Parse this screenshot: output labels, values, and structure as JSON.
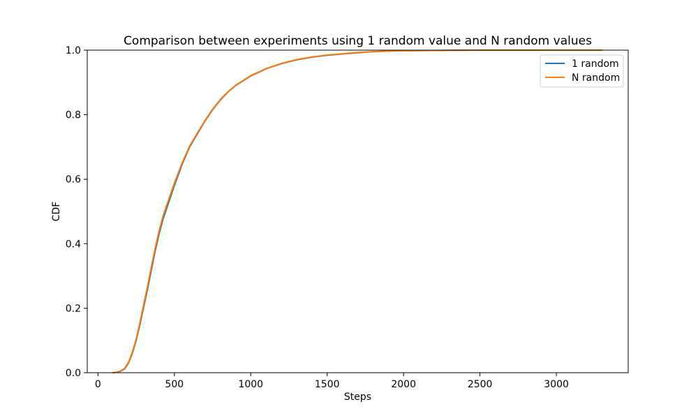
{
  "chart_data": {
    "type": "line",
    "title": "Comparison between experiments using 1 random value and N random values",
    "xlabel": "Steps",
    "ylabel": "CDF",
    "xlim": [
      -70,
      3470
    ],
    "ylim": [
      0,
      1
    ],
    "xticks": [
      0,
      500,
      1000,
      1500,
      2000,
      2500,
      3000
    ],
    "yticks": [
      0.0,
      0.2,
      0.4,
      0.6,
      0.8,
      1.0
    ],
    "xtick_labels": [
      "0",
      "500",
      "1000",
      "1500",
      "2000",
      "2500",
      "3000"
    ],
    "ytick_labels": [
      "0.0",
      "0.2",
      "0.4",
      "0.6",
      "0.8",
      "1.0"
    ],
    "grid": false,
    "legend_position": "top-right",
    "series": [
      {
        "name": "1 random",
        "color": "#1f77b4",
        "x": [
          95,
          120,
          150,
          175,
          200,
          225,
          250,
          275,
          300,
          325,
          350,
          375,
          400,
          425,
          450,
          500,
          550,
          600,
          650,
          700,
          750,
          800,
          850,
          900,
          950,
          1000,
          1100,
          1200,
          1300,
          1400,
          1500,
          1600,
          1700,
          1800,
          1900,
          2000,
          2200,
          2500,
          3000,
          3300
        ],
        "y": [
          0.0,
          0.001,
          0.005,
          0.012,
          0.03,
          0.06,
          0.1,
          0.15,
          0.205,
          0.26,
          0.32,
          0.378,
          0.43,
          0.475,
          0.51,
          0.58,
          0.645,
          0.7,
          0.74,
          0.78,
          0.815,
          0.845,
          0.87,
          0.89,
          0.905,
          0.92,
          0.942,
          0.958,
          0.97,
          0.978,
          0.984,
          0.988,
          0.992,
          0.995,
          0.997,
          0.998,
          0.999,
          1.0,
          1.0,
          1.0
        ]
      },
      {
        "name": "N random",
        "color": "#ff7f0e",
        "x": [
          95,
          120,
          150,
          175,
          200,
          225,
          250,
          275,
          300,
          325,
          350,
          375,
          400,
          425,
          450,
          500,
          550,
          600,
          650,
          700,
          750,
          800,
          850,
          900,
          950,
          1000,
          1100,
          1200,
          1300,
          1400,
          1500,
          1600,
          1700,
          1800,
          1900,
          2000,
          2200,
          2500,
          3000,
          3300
        ],
        "y": [
          0.0,
          0.001,
          0.006,
          0.014,
          0.033,
          0.064,
          0.105,
          0.157,
          0.213,
          0.27,
          0.33,
          0.388,
          0.44,
          0.485,
          0.52,
          0.588,
          0.65,
          0.703,
          0.743,
          0.782,
          0.817,
          0.847,
          0.871,
          0.891,
          0.906,
          0.921,
          0.943,
          0.959,
          0.971,
          0.979,
          0.985,
          0.989,
          0.993,
          0.995,
          0.997,
          0.998,
          0.999,
          1.0,
          1.0,
          1.0
        ]
      }
    ]
  }
}
